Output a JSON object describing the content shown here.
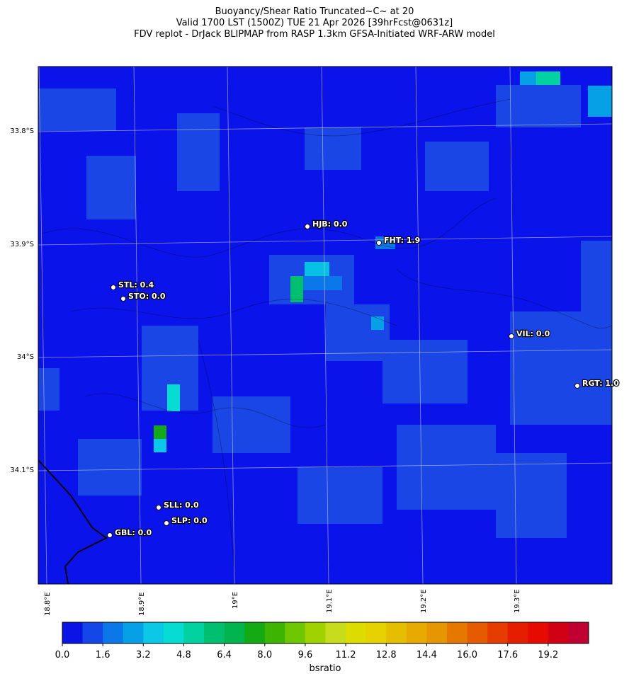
{
  "title": [
    "Buoyancy/Shear Ratio Truncated~C~    at 20",
    "Valid 1700 LST (1500Z) TUE 21 Apr 2026 [39hrFcst@0631z]",
    "FDV replot - DrJack BLIPMAP from RASP 1.3km GFSA-Initiated WRF-ARW model"
  ],
  "lat_labels": [
    "33.8°S",
    "33.9°S",
    "34°S",
    "34.1°S"
  ],
  "lon_labels": [
    "18.8°E",
    "18.9°E",
    "19°E",
    "19.1°E",
    "19.2°E",
    "19.3°E"
  ],
  "stations": [
    "HJB: 0.0",
    "FHT: 1.9",
    "STL: 0.4",
    "STO: 0.0",
    "VIL: 0.0",
    "RGT: 1.0",
    "SLL: 0.0",
    "SLP: 0.0",
    "GBL: 0.0"
  ],
  "colorbar": {
    "lim": [
      0,
      20.8
    ],
    "label": "bsratio",
    "colors": [
      "#0a14e6",
      "#1446e8",
      "#0a78e8",
      "#06a0e6",
      "#0ac8e6",
      "#06dcd2",
      "#00d2a0",
      "#00c070",
      "#00b450",
      "#14aa14",
      "#3cb400",
      "#6ec800",
      "#a0d200",
      "#c8dc1e",
      "#dcdc00",
      "#e6d200",
      "#e6be00",
      "#e6aa00",
      "#e69600",
      "#e67800",
      "#e65a00",
      "#e63c00",
      "#e61e00",
      "#e60a00",
      "#d20014",
      "#c00030"
    ],
    "ticks": [
      {
        "value": 0,
        "label": "0.0"
      },
      {
        "value": 1.6,
        "label": "1.6"
      },
      {
        "value": 3.2,
        "label": "3.2"
      },
      {
        "value": 4.8,
        "label": "4.8"
      },
      {
        "value": 6.4,
        "label": "6.4"
      },
      {
        "value": 8,
        "label": "8.0"
      },
      {
        "value": 9.6,
        "label": "9.6"
      },
      {
        "value": 11.2,
        "label": "11.2"
      },
      {
        "value": 12.8,
        "label": "12.8"
      },
      {
        "value": 14.4,
        "label": "14.4"
      },
      {
        "value": 16,
        "label": "16.0"
      },
      {
        "value": 17.6,
        "label": "17.6"
      },
      {
        "value": 19.2,
        "label": "19.2"
      }
    ]
  }
}
